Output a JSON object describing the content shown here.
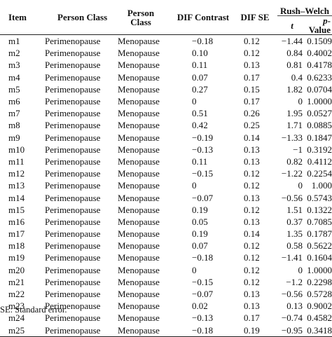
{
  "headers": {
    "item": "Item",
    "person_class_1": "Person Class",
    "person_class_2_line1": "Person",
    "person_class_2_line2": "Class",
    "dif_contrast": "DIF Contrast",
    "dif_se": "DIF SE",
    "rush_welch": "Rush–Welch",
    "t": "t",
    "p_italic": "p",
    "p_suffix": "-Value"
  },
  "rows": [
    {
      "item": "m1",
      "class1": "Perimenopause",
      "class2": "Menopause",
      "dif_contrast": "−0.18",
      "dif_se": "0.12",
      "t": "−1.44",
      "p": "0.1509"
    },
    {
      "item": "m2",
      "class1": "Perimenopause",
      "class2": "Menopause",
      "dif_contrast": "0.10",
      "dif_se": "0.12",
      "t": "0.84",
      "p": "0.4002"
    },
    {
      "item": "m3",
      "class1": "Perimenopause",
      "class2": "Menopause",
      "dif_contrast": "0.11",
      "dif_se": "0.13",
      "t": "0.81",
      "p": "0.4178"
    },
    {
      "item": "m4",
      "class1": "Perimenopause",
      "class2": "Menopause",
      "dif_contrast": "0.07",
      "dif_se": "0.17",
      "t": "0.4",
      "p": "0.6233"
    },
    {
      "item": "m5",
      "class1": "Perimenopause",
      "class2": "Menopause",
      "dif_contrast": "0.27",
      "dif_se": "0.15",
      "t": "1.82",
      "p": "0.0704"
    },
    {
      "item": "m6",
      "class1": "Perimenopause",
      "class2": "Menopause",
      "dif_contrast": "0",
      "dif_se": "0.17",
      "t": "0",
      "p": "1.0000"
    },
    {
      "item": "m7",
      "class1": "Perimenopause",
      "class2": "Menopause",
      "dif_contrast": "0.51",
      "dif_se": "0.26",
      "t": "1.95",
      "p": "0.0527"
    },
    {
      "item": "m8",
      "class1": "Perimenopause",
      "class2": "Menopause",
      "dif_contrast": "0.42",
      "dif_se": "0.25",
      "t": "1.71",
      "p": "0.0885"
    },
    {
      "item": "m9",
      "class1": "Perimenopause",
      "class2": "Menopause",
      "dif_contrast": "−0.19",
      "dif_se": "0.14",
      "t": "−1.33",
      "p": "0.1847"
    },
    {
      "item": "m10",
      "class1": "Perimenopause",
      "class2": "Menopause",
      "dif_contrast": "−0.13",
      "dif_se": "0.13",
      "t": "−1",
      "p": "0.3192"
    },
    {
      "item": "m11",
      "class1": "Perimenopause",
      "class2": "Menopause",
      "dif_contrast": "0.11",
      "dif_se": "0.13",
      "t": "0.82",
      "p": "0.4112"
    },
    {
      "item": "m12",
      "class1": "Perimenopause",
      "class2": "Menopause",
      "dif_contrast": "−0.15",
      "dif_se": "0.12",
      "t": "−1.22",
      "p": "0.2254"
    },
    {
      "item": "m13",
      "class1": "Perimenopause",
      "class2": "Menopause",
      "dif_contrast": "0",
      "dif_se": "0.12",
      "t": "0",
      "p": "1.000"
    },
    {
      "item": "m14",
      "class1": "Perimenopause",
      "class2": "Menopause",
      "dif_contrast": "−0.07",
      "dif_se": "0.13",
      "t": "−0.56",
      "p": "0.5743"
    },
    {
      "item": "m15",
      "class1": "Perimenopause",
      "class2": "Menopause",
      "dif_contrast": "0.19",
      "dif_se": "0.12",
      "t": "1.51",
      "p": "0.1322"
    },
    {
      "item": "m16",
      "class1": "Perimenopause",
      "class2": "Menopause",
      "dif_contrast": "0.05",
      "dif_se": "0.13",
      "t": "0.37",
      "p": "0.7085"
    },
    {
      "item": "m17",
      "class1": "Perimenopause",
      "class2": "Menopause",
      "dif_contrast": "0.19",
      "dif_se": "0.14",
      "t": "1.35",
      "p": "0.1787"
    },
    {
      "item": "m18",
      "class1": "Perimenopause",
      "class2": "Menopause",
      "dif_contrast": "0.07",
      "dif_se": "0.12",
      "t": "0.58",
      "p": "0.5622"
    },
    {
      "item": "m19",
      "class1": "Perimenopause",
      "class2": "Menopause",
      "dif_contrast": "−0.18",
      "dif_se": "0.12",
      "t": "−1.41",
      "p": "0.1604"
    },
    {
      "item": "m20",
      "class1": "Perimenopause",
      "class2": "Menopause",
      "dif_contrast": "0",
      "dif_se": "0.12",
      "t": "0",
      "p": "1.0000"
    },
    {
      "item": "m21",
      "class1": "Perimenopause",
      "class2": "Menopause",
      "dif_contrast": "−0.15",
      "dif_se": "0.12",
      "t": "−1.2",
      "p": "0.2298"
    },
    {
      "item": "m22",
      "class1": "Perimenopause",
      "class2": "Menopause",
      "dif_contrast": "−0.07",
      "dif_se": "0.13",
      "t": "−0.56",
      "p": "0.5728"
    },
    {
      "item": "m23",
      "class1": "Perimenopause",
      "class2": "Menopause",
      "dif_contrast": "0.02",
      "dif_se": "0.13",
      "t": "0.13",
      "p": "0.9002"
    },
    {
      "item": "m24",
      "class1": "Perimenopause",
      "class2": "Menopause",
      "dif_contrast": "−0.13",
      "dif_se": "0.17",
      "t": "−0.74",
      "p": "0.4582"
    },
    {
      "item": "m25",
      "class1": "Perimenopause",
      "class2": "Menopause",
      "dif_contrast": "−0.18",
      "dif_se": "0.19",
      "t": "−0.95",
      "p": "0.3418"
    }
  ],
  "footnote": "SE: Standard error."
}
